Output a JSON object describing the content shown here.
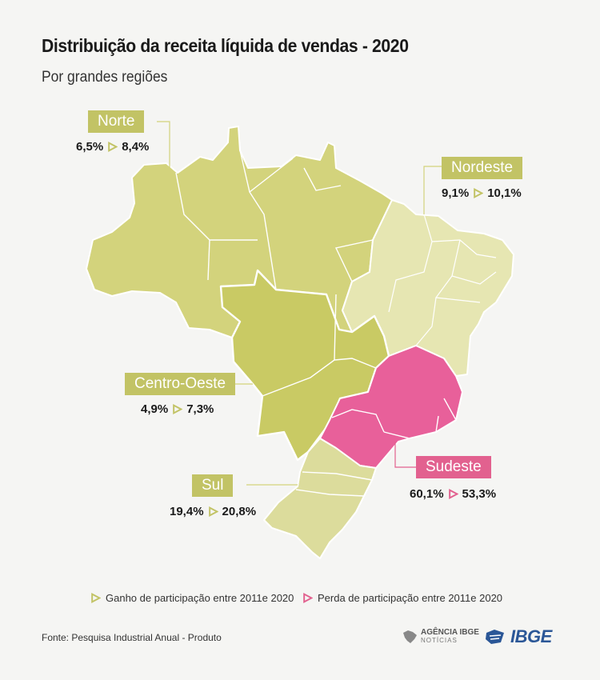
{
  "header": {
    "title": "Distribuição da receita líquida de vendas - 2020",
    "subtitle": "Por grandes regiões"
  },
  "regions": [
    {
      "name": "Norte",
      "from": "6,5%",
      "to": "8,4%",
      "trend": "gain",
      "fill": "#d3d37c"
    },
    {
      "name": "Nordeste",
      "from": "9,1%",
      "to": "10,1%",
      "trend": "gain",
      "fill": "#e6e6b2"
    },
    {
      "name": "Centro-Oeste",
      "from": "4,9%",
      "to": "7,3%",
      "trend": "gain",
      "fill": "#c9ca64"
    },
    {
      "name": "Sudeste",
      "from": "60,1%",
      "to": "53,3%",
      "trend": "loss",
      "fill": "#e8609a"
    },
    {
      "name": "Sul",
      "from": "19,4%",
      "to": "20,8%",
      "trend": "gain",
      "fill": "#dcdc9c"
    }
  ],
  "legend": {
    "gain": "Ganho de participação entre 2011e 2020",
    "loss": "Perda de participação entre 2011e 2020"
  },
  "colors": {
    "gain_accent": "#c2c365",
    "loss_accent": "#e2618f",
    "border": "#ffffff",
    "ibge_blue": "#2b5797"
  },
  "footer": {
    "source": "Fonte: Pesquisa Industrial Anual - Produto",
    "agencia": "AGÊNCIA IBGE",
    "agencia_sub": "NOTÍCIAS",
    "ibge": "IBGE"
  }
}
